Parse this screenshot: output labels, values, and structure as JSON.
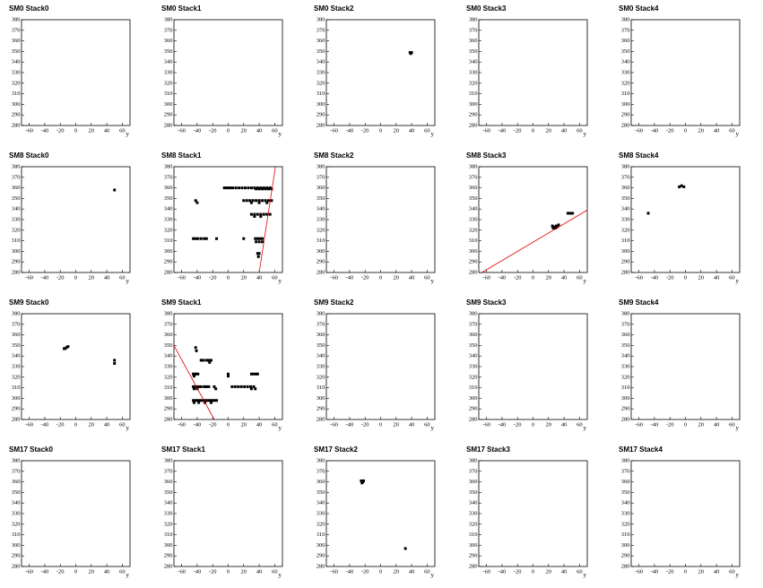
{
  "chart_data": [
    {
      "type": "scatter",
      "title": "SM0 Stack0",
      "xlabel": "y",
      "x": [],
      "values": [],
      "color": "#000000",
      "xlim": [
        -70,
        70
      ],
      "ylim": [
        280,
        380
      ],
      "xticks": [
        -60,
        -40,
        -20,
        0,
        20,
        40,
        60
      ],
      "yticks": [
        280,
        290,
        300,
        310,
        320,
        330,
        340,
        350,
        360,
        370,
        380
      ]
    },
    {
      "type": "scatter",
      "title": "SM0 Stack1",
      "xlabel": "y",
      "x": [],
      "values": [],
      "color": "#000000",
      "xlim": [
        -70,
        70
      ],
      "ylim": [
        280,
        380
      ],
      "xticks": [
        -60,
        -40,
        -20,
        0,
        20,
        40,
        60
      ],
      "yticks": [
        280,
        290,
        300,
        310,
        320,
        330,
        340,
        350,
        360,
        370,
        380
      ]
    },
    {
      "type": "scatter",
      "title": "SM0 Stack2",
      "xlabel": "y",
      "x": [
        38,
        39,
        40
      ],
      "values": [
        349,
        348,
        349
      ],
      "color": "#000000",
      "xlim": [
        -70,
        70
      ],
      "ylim": [
        280,
        380
      ],
      "xticks": [
        -60,
        -40,
        -20,
        0,
        20,
        40,
        60
      ],
      "yticks": [
        280,
        290,
        300,
        310,
        320,
        330,
        340,
        350,
        360,
        370,
        380
      ]
    },
    {
      "type": "scatter",
      "title": "SM0 Stack3",
      "xlabel": "y",
      "x": [],
      "values": [],
      "color": "#000000",
      "xlim": [
        -70,
        70
      ],
      "ylim": [
        280,
        380
      ],
      "xticks": [
        -60,
        -40,
        -20,
        0,
        20,
        40,
        60
      ],
      "yticks": [
        280,
        290,
        300,
        310,
        320,
        330,
        340,
        350,
        360,
        370,
        380
      ]
    },
    {
      "type": "scatter",
      "title": "SM0 Stack4",
      "xlabel": "y",
      "x": [],
      "values": [],
      "color": "#000000",
      "xlim": [
        -70,
        70
      ],
      "ylim": [
        280,
        380
      ],
      "xticks": [
        -60,
        -40,
        -20,
        0,
        20,
        40,
        60
      ],
      "yticks": [
        280,
        290,
        300,
        310,
        320,
        330,
        340,
        350,
        360,
        370,
        380
      ]
    },
    {
      "type": "scatter",
      "title": "SM8 Stack0",
      "xlabel": "y",
      "x": [
        50
      ],
      "values": [
        358
      ],
      "color": "#000000",
      "xlim": [
        -70,
        70
      ],
      "ylim": [
        280,
        380
      ],
      "xticks": [
        -60,
        -40,
        -20,
        0,
        20,
        40,
        60
      ],
      "yticks": [
        280,
        290,
        300,
        310,
        320,
        330,
        340,
        350,
        360,
        370,
        380
      ]
    },
    {
      "type": "scatter",
      "title": "SM8 Stack1",
      "xlabel": "y",
      "x": [
        -5,
        -3,
        0,
        3,
        6,
        10,
        14,
        18,
        22,
        26,
        30,
        34,
        38,
        42,
        46,
        50,
        54,
        36,
        40,
        44,
        48,
        52,
        56,
        -42,
        -40,
        20,
        24,
        28,
        32,
        36,
        40,
        44,
        48,
        52,
        56,
        30,
        40,
        50,
        30,
        34,
        38,
        42,
        46,
        50,
        54,
        34,
        42,
        -45,
        -42,
        -39,
        -35,
        -31,
        -28,
        -15,
        20,
        35,
        38,
        41,
        44,
        36,
        40,
        44,
        38,
        40,
        39
      ],
      "values": [
        360,
        360,
        360,
        360,
        360,
        360,
        360,
        360,
        360,
        360,
        360,
        360,
        360,
        360,
        360,
        360,
        360,
        359,
        359,
        359,
        359,
        359,
        359,
        348,
        346,
        348,
        348,
        348,
        348,
        348,
        348,
        348,
        348,
        348,
        348,
        346,
        346,
        346,
        335,
        335,
        335,
        335,
        335,
        335,
        335,
        333,
        333,
        312,
        312,
        312,
        312,
        312,
        312,
        312,
        312,
        312,
        312,
        312,
        312,
        309,
        309,
        309,
        298,
        298,
        295
      ],
      "fit": {
        "color": "#e00000",
        "x": [
          40,
          61
        ],
        "values": [
          280,
          380
        ]
      },
      "color": "#000000",
      "xlim": [
        -70,
        70
      ],
      "ylim": [
        280,
        380
      ],
      "xticks": [
        -60,
        -40,
        -20,
        0,
        20,
        40,
        60
      ],
      "yticks": [
        280,
        290,
        300,
        310,
        320,
        330,
        340,
        350,
        360,
        370,
        380
      ]
    },
    {
      "type": "scatter",
      "title": "SM8 Stack2",
      "xlabel": "y",
      "x": [],
      "values": [],
      "color": "#000000",
      "xlim": [
        -70,
        70
      ],
      "ylim": [
        280,
        380
      ],
      "xticks": [
        -60,
        -40,
        -20,
        0,
        20,
        40,
        60
      ],
      "yticks": [
        280,
        290,
        300,
        310,
        320,
        330,
        340,
        350,
        360,
        370,
        380
      ]
    },
    {
      "type": "scatter",
      "title": "SM8 Stack3",
      "xlabel": "y",
      "x": [
        25,
        27,
        29,
        31,
        33,
        26,
        30,
        45,
        48,
        51
      ],
      "values": [
        324,
        323,
        322,
        323,
        325,
        322,
        324,
        336,
        336,
        336
      ],
      "fit": {
        "color": "#e00000",
        "x": [
          -66,
          70
        ],
        "values": [
          280,
          339
        ]
      },
      "color": "#000000",
      "xlim": [
        -70,
        70
      ],
      "ylim": [
        280,
        380
      ],
      "xticks": [
        -60,
        -40,
        -20,
        0,
        20,
        40,
        60
      ],
      "yticks": [
        280,
        290,
        300,
        310,
        320,
        330,
        340,
        350,
        360,
        370,
        380
      ]
    },
    {
      "type": "scatter",
      "title": "SM8 Stack4",
      "xlabel": "y",
      "x": [
        -8,
        -5,
        -2,
        -48
      ],
      "values": [
        361,
        362,
        361,
        336
      ],
      "color": "#000000",
      "xlim": [
        -70,
        70
      ],
      "ylim": [
        280,
        380
      ],
      "xticks": [
        -60,
        -40,
        -20,
        0,
        20,
        40,
        60
      ],
      "yticks": [
        280,
        290,
        300,
        310,
        320,
        330,
        340,
        350,
        360,
        370,
        380
      ]
    },
    {
      "type": "scatter",
      "title": "SM9 Stack0",
      "xlabel": "y",
      "x": [
        -15,
        -14,
        -12,
        -10,
        50,
        50
      ],
      "values": [
        347,
        347,
        348,
        349,
        336,
        333
      ],
      "color": "#000000",
      "xlim": [
        -70,
        70
      ],
      "ylim": [
        280,
        380
      ],
      "xticks": [
        -60,
        -40,
        -20,
        0,
        20,
        40,
        60
      ],
      "yticks": [
        280,
        290,
        300,
        310,
        320,
        330,
        340,
        350,
        360,
        370,
        380
      ]
    },
    {
      "type": "scatter",
      "title": "SM9 Stack1",
      "xlabel": "y",
      "x": [
        -42,
        -41,
        -35,
        -32,
        -28,
        -25,
        -22,
        -24,
        -45,
        -43,
        -41,
        -39,
        0,
        30,
        33,
        36,
        38,
        -44,
        0,
        -45,
        -43,
        -41,
        -38,
        -35,
        -31,
        -28,
        -25,
        -18,
        5,
        9,
        13,
        17,
        21,
        25,
        29,
        33,
        -44,
        -40,
        -16,
        30,
        35,
        -45,
        -42,
        -39,
        -36,
        -33,
        -30,
        -27,
        -24,
        -21,
        -18,
        -15,
        -44,
        -38,
        -30,
        -22
      ],
      "values": [
        348,
        345,
        336,
        336,
        336,
        336,
        336,
        334,
        323,
        323,
        323,
        323,
        323,
        323,
        323,
        323,
        323,
        321,
        321,
        311,
        311,
        311,
        311,
        311,
        311,
        311,
        311,
        311,
        311,
        311,
        311,
        311,
        311,
        311,
        311,
        311,
        309,
        309,
        309,
        309,
        309,
        298,
        298,
        298,
        298,
        298,
        298,
        298,
        298,
        298,
        298,
        298,
        296,
        296,
        296,
        296
      ],
      "fit": {
        "color": "#e00000",
        "x": [
          -70,
          -18
        ],
        "values": [
          350,
          280
        ]
      },
      "color": "#000000",
      "xlim": [
        -70,
        70
      ],
      "ylim": [
        280,
        380
      ],
      "xticks": [
        -60,
        -40,
        -20,
        0,
        20,
        40,
        60
      ],
      "yticks": [
        280,
        290,
        300,
        310,
        320,
        330,
        340,
        350,
        360,
        370,
        380
      ]
    },
    {
      "type": "scatter",
      "title": "SM9 Stack2",
      "xlabel": "y",
      "x": [],
      "values": [],
      "color": "#000000",
      "xlim": [
        -70,
        70
      ],
      "ylim": [
        280,
        380
      ],
      "xticks": [
        -60,
        -40,
        -20,
        0,
        20,
        40,
        60
      ],
      "yticks": [
        280,
        290,
        300,
        310,
        320,
        330,
        340,
        350,
        360,
        370,
        380
      ]
    },
    {
      "type": "scatter",
      "title": "SM9 Stack3",
      "xlabel": "y",
      "x": [],
      "values": [],
      "color": "#000000",
      "xlim": [
        -70,
        70
      ],
      "ylim": [
        280,
        380
      ],
      "xticks": [
        -60,
        -40,
        -20,
        0,
        20,
        40,
        60
      ],
      "yticks": [
        280,
        290,
        300,
        310,
        320,
        330,
        340,
        350,
        360,
        370,
        380
      ]
    },
    {
      "type": "scatter",
      "title": "SM9 Stack4",
      "xlabel": "y",
      "x": [],
      "values": [],
      "color": "#000000",
      "xlim": [
        -70,
        70
      ],
      "ylim": [
        280,
        380
      ],
      "xticks": [
        -60,
        -40,
        -20,
        0,
        20,
        40,
        60
      ],
      "yticks": [
        280,
        290,
        300,
        310,
        320,
        330,
        340,
        350,
        360,
        370,
        380
      ]
    },
    {
      "type": "scatter",
      "title": "SM17 Stack0",
      "xlabel": "y",
      "x": [],
      "values": [],
      "color": "#000000",
      "xlim": [
        -70,
        70
      ],
      "ylim": [
        280,
        380
      ],
      "xticks": [
        -60,
        -40,
        -20,
        0,
        20,
        40,
        60
      ],
      "yticks": [
        280,
        290,
        300,
        310,
        320,
        330,
        340,
        350,
        360,
        370,
        380
      ]
    },
    {
      "type": "scatter",
      "title": "SM17 Stack1",
      "xlabel": "y",
      "x": [],
      "values": [],
      "color": "#000000",
      "xlim": [
        -70,
        70
      ],
      "ylim": [
        280,
        380
      ],
      "xticks": [
        -60,
        -40,
        -20,
        0,
        20,
        40,
        60
      ],
      "yticks": [
        280,
        290,
        300,
        310,
        320,
        330,
        340,
        350,
        360,
        370,
        380
      ]
    },
    {
      "type": "scatter",
      "title": "SM17 Stack2",
      "xlabel": "y",
      "x": [
        -25,
        -23,
        -24,
        -22,
        32
      ],
      "values": [
        361,
        360,
        359,
        361,
        297
      ],
      "color": "#000000",
      "xlim": [
        -70,
        70
      ],
      "ylim": [
        280,
        380
      ],
      "xticks": [
        -60,
        -40,
        -20,
        0,
        20,
        40,
        60
      ],
      "yticks": [
        280,
        290,
        300,
        310,
        320,
        330,
        340,
        350,
        360,
        370,
        380
      ]
    },
    {
      "type": "scatter",
      "title": "SM17 Stack3",
      "xlabel": "y",
      "x": [],
      "values": [],
      "color": "#000000",
      "xlim": [
        -70,
        70
      ],
      "ylim": [
        280,
        380
      ],
      "xticks": [
        -60,
        -40,
        -20,
        0,
        20,
        40,
        60
      ],
      "yticks": [
        280,
        290,
        300,
        310,
        320,
        330,
        340,
        350,
        360,
        370,
        380
      ]
    },
    {
      "type": "scatter",
      "title": "SM17 Stack4",
      "xlabel": "y",
      "x": [],
      "values": [],
      "color": "#000000",
      "xlim": [
        -70,
        70
      ],
      "ylim": [
        280,
        380
      ],
      "xticks": [
        -60,
        -40,
        -20,
        0,
        20,
        40,
        60
      ],
      "yticks": [
        280,
        290,
        300,
        310,
        320,
        330,
        340,
        350,
        360,
        370,
        380
      ]
    }
  ]
}
